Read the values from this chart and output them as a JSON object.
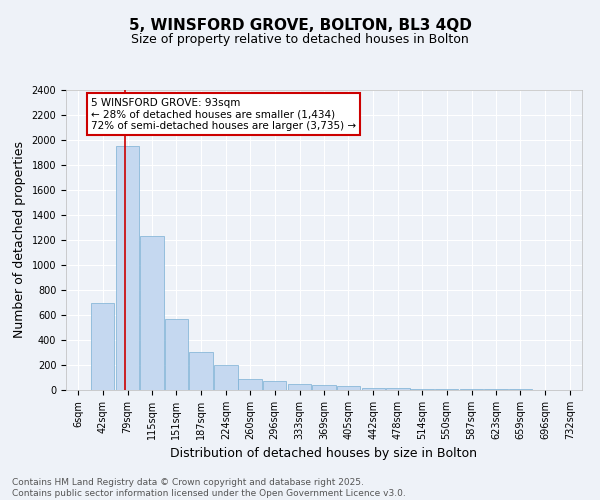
{
  "title": "5, WINSFORD GROVE, BOLTON, BL3 4QD",
  "subtitle": "Size of property relative to detached houses in Bolton",
  "xlabel": "Distribution of detached houses by size in Bolton",
  "ylabel": "Number of detached properties",
  "bins": [
    6,
    42,
    79,
    115,
    151,
    187,
    224,
    260,
    296,
    333,
    369,
    405,
    442,
    478,
    514,
    550,
    587,
    623,
    659,
    696,
    732
  ],
  "bar_heights": [
    0,
    700,
    1950,
    1230,
    570,
    305,
    200,
    90,
    70,
    50,
    40,
    30,
    20,
    15,
    10,
    8,
    6,
    5,
    5,
    4,
    3
  ],
  "bar_color": "#c5d8f0",
  "bar_edge_color": "#7aafd4",
  "red_line_x": 93,
  "red_line_color": "#cc0000",
  "ylim": [
    0,
    2400
  ],
  "yticks": [
    0,
    200,
    400,
    600,
    800,
    1000,
    1200,
    1400,
    1600,
    1800,
    2000,
    2200,
    2400
  ],
  "annotation_text": "5 WINSFORD GROVE: 93sqm\n← 28% of detached houses are smaller (1,434)\n72% of semi-detached houses are larger (3,735) →",
  "annotation_box_facecolor": "#ffffff",
  "annotation_box_edgecolor": "#cc0000",
  "footnote": "Contains HM Land Registry data © Crown copyright and database right 2025.\nContains public sector information licensed under the Open Government Licence v3.0.",
  "bg_color": "#eef2f8",
  "grid_color": "#ffffff",
  "title_fontsize": 11,
  "subtitle_fontsize": 9,
  "axis_label_fontsize": 9,
  "tick_fontsize": 7,
  "annotation_fontsize": 7.5,
  "footnote_fontsize": 6.5
}
